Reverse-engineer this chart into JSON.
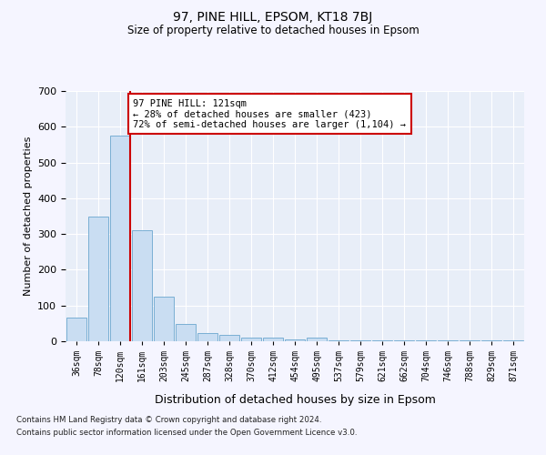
{
  "title1": "97, PINE HILL, EPSOM, KT18 7BJ",
  "title2": "Size of property relative to detached houses in Epsom",
  "xlabel": "Distribution of detached houses by size in Epsom",
  "ylabel": "Number of detached properties",
  "bar_labels": [
    "36sqm",
    "78sqm",
    "120sqm",
    "161sqm",
    "203sqm",
    "245sqm",
    "287sqm",
    "328sqm",
    "370sqm",
    "412sqm",
    "454sqm",
    "495sqm",
    "537sqm",
    "579sqm",
    "621sqm",
    "662sqm",
    "704sqm",
    "746sqm",
    "788sqm",
    "829sqm",
    "871sqm"
  ],
  "bar_values": [
    65,
    350,
    575,
    310,
    125,
    48,
    22,
    18,
    10,
    10,
    5,
    10,
    3,
    3,
    3,
    3,
    3,
    3,
    3,
    3,
    3
  ],
  "bar_color": "#c9ddf2",
  "bar_edge_color": "#7aafd4",
  "property_line_x": 2.45,
  "annotation_line1": "97 PINE HILL: 121sqm",
  "annotation_line2": "← 28% of detached houses are smaller (423)",
  "annotation_line3": "72% of semi-detached houses are larger (1,104) →",
  "annotation_box_facecolor": "#ffffff",
  "annotation_border_color": "#cc0000",
  "property_line_color": "#cc0000",
  "footer1": "Contains HM Land Registry data © Crown copyright and database right 2024.",
  "footer2": "Contains public sector information licensed under the Open Government Licence v3.0.",
  "plot_bg_color": "#e8eef8",
  "fig_bg_color": "#f5f5ff",
  "ylim": [
    0,
    700
  ],
  "yticks": [
    0,
    100,
    200,
    300,
    400,
    500,
    600,
    700
  ]
}
